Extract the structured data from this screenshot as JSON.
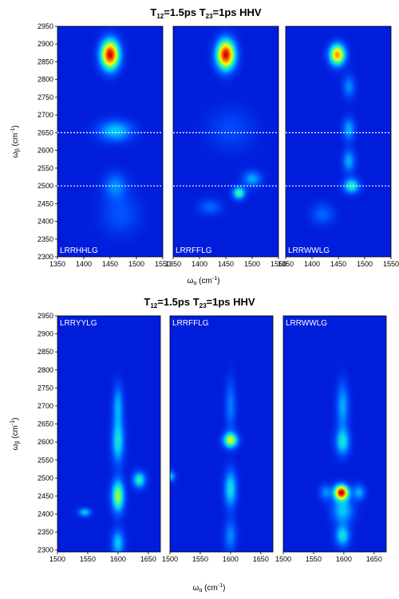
{
  "chart_data": [
    {
      "type": "heatmap",
      "title_main": "T",
      "title_sub1": "12",
      "title_mid": "=1.5ps T",
      "title_sub2": "23",
      "title_end": "=1ps HHV",
      "xlabel_main": "ω",
      "xlabel_sub": "α",
      "xlabel_unit": " (cm",
      "xlabel_exp": "-1",
      "xlabel_close": ")",
      "ylabel_main": "ω",
      "ylabel_sub": "β",
      "ylabel_unit": " (cm",
      "ylabel_exp": "-1",
      "ylabel_close": ")",
      "xlim": [
        1350,
        1550
      ],
      "ylim": [
        2300,
        2950
      ],
      "x_ticks": [
        "1350",
        "1400",
        "1450",
        "1500",
        "1550"
      ],
      "y_ticks": [
        "2300",
        "2350",
        "2400",
        "2450",
        "2500",
        "2550",
        "2600",
        "2650",
        "2700",
        "2750",
        "2800",
        "2850",
        "2900",
        "2950"
      ],
      "dashed_lines_y": [
        2650,
        2500
      ],
      "colormap": [
        "#0000c8",
        "#0050ff",
        "#00c8ff",
        "#50ff80",
        "#ffff00",
        "#ff8000",
        "#d00000"
      ],
      "panels": [
        {
          "label": "LRRHHLG",
          "peaks": [
            {
              "x": 1450,
              "y": 2870,
              "sx": 12,
              "sy": 28,
              "a": 1.0
            },
            {
              "x": 1460,
              "y": 2655,
              "sx": 22,
              "sy": 20,
              "a": 0.3
            },
            {
              "x": 1460,
              "y": 2500,
              "sx": 15,
              "sy": 25,
              "a": 0.2
            },
            {
              "x": 1470,
              "y": 2420,
              "sx": 25,
              "sy": 40,
              "a": 0.12
            }
          ]
        },
        {
          "label": "LRRFFLG",
          "peaks": [
            {
              "x": 1450,
              "y": 2870,
              "sx": 12,
              "sy": 28,
              "a": 1.0
            },
            {
              "x": 1475,
              "y": 2480,
              "sx": 8,
              "sy": 12,
              "a": 0.45
            },
            {
              "x": 1500,
              "y": 2520,
              "sx": 12,
              "sy": 15,
              "a": 0.25
            },
            {
              "x": 1420,
              "y": 2440,
              "sx": 15,
              "sy": 15,
              "a": 0.15
            },
            {
              "x": 1460,
              "y": 2660,
              "sx": 30,
              "sy": 40,
              "a": 0.1
            }
          ]
        },
        {
          "label": "LRRWWLG",
          "peaks": [
            {
              "x": 1448,
              "y": 2870,
              "sx": 10,
              "sy": 20,
              "a": 0.8
            },
            {
              "x": 1475,
              "y": 2500,
              "sx": 10,
              "sy": 14,
              "a": 0.4
            },
            {
              "x": 1470,
              "y": 2570,
              "sx": 8,
              "sy": 22,
              "a": 0.25
            },
            {
              "x": 1470,
              "y": 2660,
              "sx": 8,
              "sy": 22,
              "a": 0.25
            },
            {
              "x": 1470,
              "y": 2780,
              "sx": 8,
              "sy": 22,
              "a": 0.2
            },
            {
              "x": 1420,
              "y": 2420,
              "sx": 15,
              "sy": 20,
              "a": 0.15
            }
          ]
        }
      ]
    },
    {
      "type": "heatmap",
      "title_main": "T",
      "title_sub1": "12",
      "title_mid": "=1.5ps T",
      "title_sub2": "23",
      "title_end": "=1ps HHV",
      "xlabel_main": "ω",
      "xlabel_sub": "α",
      "xlabel_unit": " (cm",
      "xlabel_exp": "-1",
      "xlabel_close": ")",
      "ylabel_main": "ω",
      "ylabel_sub": "β",
      "ylabel_unit": " (cm",
      "ylabel_exp": "-1",
      "ylabel_close": ")",
      "xlim": [
        1500,
        1670
      ],
      "ylim": [
        2295,
        2950
      ],
      "x_ticks": [
        "1500",
        "1550",
        "1600",
        "1650"
      ],
      "y_ticks": [
        "2300",
        "2350",
        "2400",
        "2450",
        "2500",
        "2550",
        "2600",
        "2650",
        "2700",
        "2750",
        "2800",
        "2850",
        "2900",
        "2950"
      ],
      "dashed_lines_y": [],
      "colormap": [
        "#0000c8",
        "#0050ff",
        "#00c8ff",
        "#50ff80",
        "#ffff00",
        "#ff8000",
        "#d00000"
      ],
      "panels": [
        {
          "label": "LRRYYLG",
          "peaks": [
            {
              "x": 1600,
              "y": 2450,
              "sx": 7,
              "sy": 30,
              "a": 0.55
            },
            {
              "x": 1600,
              "y": 2600,
              "sx": 7,
              "sy": 40,
              "a": 0.35
            },
            {
              "x": 1600,
              "y": 2700,
              "sx": 6,
              "sy": 40,
              "a": 0.25
            },
            {
              "x": 1635,
              "y": 2495,
              "sx": 7,
              "sy": 15,
              "a": 0.4
            },
            {
              "x": 1545,
              "y": 2405,
              "sx": 7,
              "sy": 8,
              "a": 0.3
            },
            {
              "x": 1600,
              "y": 2320,
              "sx": 7,
              "sy": 25,
              "a": 0.3
            }
          ]
        },
        {
          "label": "LRRFFLG",
          "peaks": [
            {
              "x": 1600,
              "y": 2605,
              "sx": 8,
              "sy": 14,
              "a": 0.6
            },
            {
              "x": 1600,
              "y": 2470,
              "sx": 7,
              "sy": 35,
              "a": 0.35
            },
            {
              "x": 1600,
              "y": 2700,
              "sx": 6,
              "sy": 50,
              "a": 0.18
            },
            {
              "x": 1600,
              "y": 2340,
              "sx": 7,
              "sy": 30,
              "a": 0.2
            },
            {
              "x": 1500,
              "y": 2505,
              "sx": 6,
              "sy": 10,
              "a": 0.3
            }
          ]
        },
        {
          "label": "LRRWWLG",
          "peaks": [
            {
              "x": 1596,
              "y": 2460,
              "sx": 8,
              "sy": 14,
              "a": 1.0
            },
            {
              "x": 1598,
              "y": 2600,
              "sx": 8,
              "sy": 25,
              "a": 0.35
            },
            {
              "x": 1598,
              "y": 2700,
              "sx": 7,
              "sy": 45,
              "a": 0.25
            },
            {
              "x": 1598,
              "y": 2340,
              "sx": 8,
              "sy": 20,
              "a": 0.35
            },
            {
              "x": 1598,
              "y": 2410,
              "sx": 12,
              "sy": 25,
              "a": 0.3
            },
            {
              "x": 1625,
              "y": 2460,
              "sx": 7,
              "sy": 15,
              "a": 0.25
            },
            {
              "x": 1570,
              "y": 2460,
              "sx": 7,
              "sy": 15,
              "a": 0.2
            }
          ]
        }
      ]
    }
  ]
}
